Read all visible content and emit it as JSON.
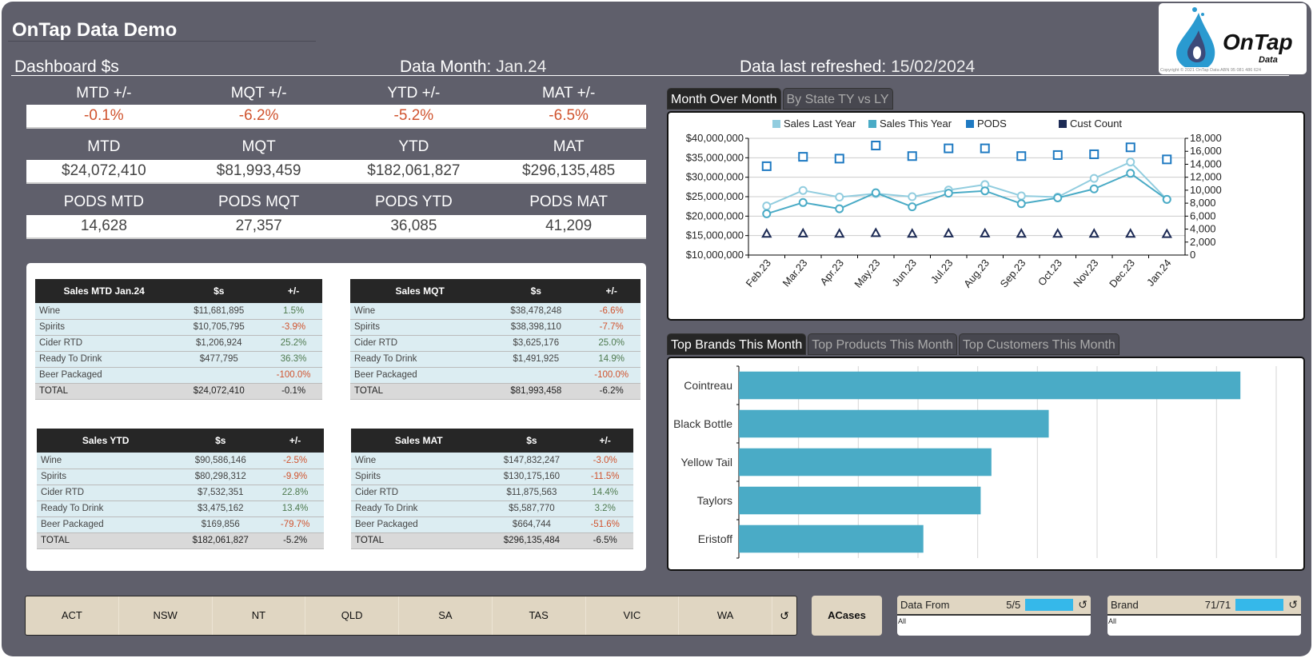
{
  "header": {
    "title": "OnTap Data Demo",
    "dashboard_label": "Dashboard $s",
    "data_month_label": "Data Month:",
    "data_month_value": "Jan.24",
    "refreshed_label": "Data last refreshed:",
    "refreshed_value": "15/02/2024",
    "logo_text": "OnTap",
    "logo_sub": "Data",
    "copyright": "Copyright © 2021 OnTap Data ABN 95 081 486 624"
  },
  "kpis": {
    "change": {
      "labels": [
        "MTD +/-",
        "MQT +/-",
        "YTD +/-",
        "MAT +/-"
      ],
      "values": [
        "-0.1%",
        "-6.2%",
        "-5.2%",
        "-6.5%"
      ]
    },
    "sales": {
      "labels": [
        "MTD",
        "MQT",
        "YTD",
        "MAT"
      ],
      "values": [
        "$24,072,410",
        "$81,993,459",
        "$182,061,827",
        "$296,135,485"
      ]
    },
    "pods": {
      "labels": [
        "PODS MTD",
        "PODS MQT",
        "PODS YTD",
        "PODS MAT"
      ],
      "values": [
        "14,628",
        "27,357",
        "36,085",
        "41,209"
      ]
    }
  },
  "tables": [
    {
      "title": "Sales MTD Jan.24",
      "col_value": "$s",
      "col_change": "+/-",
      "rows": [
        [
          "Wine",
          "$11,681,895",
          "1.5%"
        ],
        [
          "Spirits",
          "$10,705,795",
          "-3.9%"
        ],
        [
          "Cider RTD",
          "$1,206,924",
          "25.2%"
        ],
        [
          "Ready To Drink",
          "$477,795",
          "36.3%"
        ],
        [
          "Beer Packaged",
          "",
          "-100.0%"
        ]
      ],
      "total": [
        "TOTAL",
        "$24,072,410",
        "-0.1%"
      ]
    },
    {
      "title": "Sales MQT",
      "col_value": "$s",
      "col_change": "+/-",
      "rows": [
        [
          "Wine",
          "$38,478,248",
          "-6.6%"
        ],
        [
          "Spirits",
          "$38,398,110",
          "-7.7%"
        ],
        [
          "Cider RTD",
          "$3,625,176",
          "25.0%"
        ],
        [
          "Ready To Drink",
          "$1,491,925",
          "14.9%"
        ],
        [
          "Beer Packaged",
          "",
          "-100.0%"
        ]
      ],
      "total": [
        "TOTAL",
        "$81,993,458",
        "-6.2%"
      ]
    },
    {
      "title": "Sales YTD",
      "col_value": "$s",
      "col_change": "+/-",
      "rows": [
        [
          "Wine",
          "$90,586,146",
          "-2.5%"
        ],
        [
          "Spirits",
          "$80,298,312",
          "-9.9%"
        ],
        [
          "Cider RTD",
          "$7,532,351",
          "22.8%"
        ],
        [
          "Ready To Drink",
          "$3,475,162",
          "13.4%"
        ],
        [
          "Beer Packaged",
          "$169,856",
          "-79.7%"
        ]
      ],
      "total": [
        "TOTAL",
        "$182,061,827",
        "-5.2%"
      ]
    },
    {
      "title": "Sales MAT",
      "col_value": "$s",
      "col_change": "+/-",
      "rows": [
        [
          "Wine",
          "$147,832,247",
          "-3.0%"
        ],
        [
          "Spirits",
          "$130,175,160",
          "-11.5%"
        ],
        [
          "Cider RTD",
          "$11,875,563",
          "14.4%"
        ],
        [
          "Ready To Drink",
          "$5,587,770",
          "3.2%"
        ],
        [
          "Beer Packaged",
          "$664,744",
          "-51.6%"
        ]
      ],
      "total": [
        "TOTAL",
        "$296,135,484",
        "-6.5%"
      ]
    }
  ],
  "chart_tabs": [
    {
      "label": "Month Over Month",
      "active": true
    },
    {
      "label": "By State TY vs LY",
      "active": false
    }
  ],
  "rank_tabs": [
    {
      "label": "Top Brands This Month",
      "active": true
    },
    {
      "label": "Top Products This Month",
      "active": false
    },
    {
      "label": "Top Customers This Month",
      "active": false
    }
  ],
  "chart_data": [
    {
      "type": "line",
      "x": [
        "Feb.23",
        "Mar.23",
        "Apr.23",
        "May.23",
        "Jun.23",
        "Jul.23",
        "Aug.23",
        "Sep.23",
        "Oct.23",
        "Nov.23",
        "Dec.23",
        "Jan.24"
      ],
      "y_left_ticks": [
        "$10,000,000",
        "$15,000,000",
        "$20,000,000",
        "$25,000,000",
        "$30,000,000",
        "$35,000,000",
        "$40,000,000"
      ],
      "y_right_ticks": [
        "0",
        "2,000",
        "4,000",
        "6,000",
        "8,000",
        "10,000",
        "12,000",
        "14,000",
        "16,000",
        "18,000"
      ],
      "ylim_left": [
        10000000,
        40000000
      ],
      "ylim_right": [
        0,
        18000
      ],
      "grid": true,
      "legend": "top",
      "series": [
        {
          "name": "Sales Last Year",
          "axis": "left",
          "marker": "circle",
          "color": "#92cddf",
          "values": [
            22600000,
            26600000,
            24900000,
            25800000,
            25000000,
            26700000,
            28100000,
            25200000,
            24900000,
            29700000,
            33900000,
            24300000
          ]
        },
        {
          "name": "Sales This Year",
          "axis": "left",
          "marker": "circle",
          "color": "#4aabc6",
          "values": [
            20600000,
            23500000,
            21900000,
            26000000,
            22400000,
            25900000,
            26500000,
            23200000,
            24700000,
            27000000,
            31000000,
            24300000
          ]
        },
        {
          "name": "PODS",
          "axis": "right",
          "marker": "square",
          "color": "#1f7ac2",
          "values": [
            13700,
            15150,
            14870,
            16890,
            15260,
            16450,
            16450,
            15260,
            15420,
            15540,
            16610,
            14750
          ]
        },
        {
          "name": "Cust Count",
          "axis": "right",
          "marker": "triangle",
          "color": "#1d2b55",
          "values": [
            3300,
            3350,
            3300,
            3400,
            3300,
            3350,
            3350,
            3300,
            3300,
            3300,
            3300,
            3250
          ]
        }
      ]
    },
    {
      "type": "bar",
      "orientation": "horizontal",
      "categories": [
        "Cointreau",
        "Black Bottle",
        "Yellow Tail",
        "Taylors",
        "Eristoff"
      ],
      "values": [
        8.4,
        5.19,
        4.23,
        4.05,
        3.09
      ],
      "xlim": [
        0,
        9
      ],
      "grid": true,
      "color": "#4aabc6"
    }
  ],
  "states": [
    "ACT",
    "NSW",
    "NT",
    "QLD",
    "SA",
    "TAS",
    "VIC",
    "WA"
  ],
  "acases_label": "ACases",
  "filters": [
    {
      "label": "Data From",
      "count": "5/5",
      "selection": "All",
      "fill": 1.0
    },
    {
      "label": "Brand",
      "count": "71/71",
      "selection": "All",
      "fill": 1.0
    }
  ],
  "colors": {
    "background": "#5f5f6b",
    "negative": "#d0532e",
    "positive": "#4f7a4f",
    "bar": "#4aabc6",
    "slicer": "#e0d6c2"
  }
}
